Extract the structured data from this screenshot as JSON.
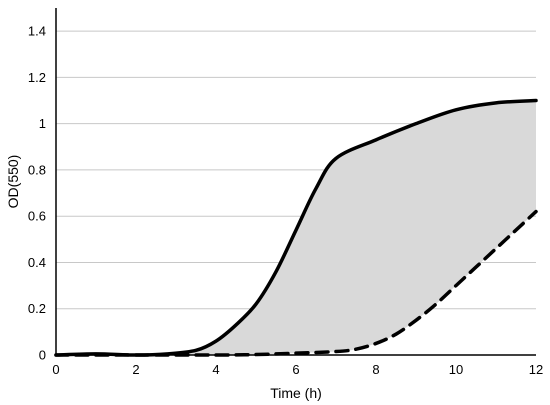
{
  "chart_data": {
    "type": "area",
    "xlabel": "Time (h)",
    "ylabel": "OD(550)",
    "xlim": [
      0,
      12
    ],
    "ylim": [
      0,
      1.5
    ],
    "x_ticks": [
      0,
      2,
      4,
      6,
      8,
      10,
      12
    ],
    "y_ticks": [
      0,
      0.2,
      0.4,
      0.6,
      0.8,
      1,
      1.2,
      1.4
    ],
    "grid": "horizontal",
    "fill_between_series": "#d9d9d9",
    "series": [
      {
        "style": "solid",
        "color": "#000000",
        "points": [
          [
            0,
            0
          ],
          [
            1,
            0.005
          ],
          [
            2,
            0
          ],
          [
            2.8,
            0.005
          ],
          [
            3.5,
            0.02
          ],
          [
            4,
            0.06
          ],
          [
            4.5,
            0.13
          ],
          [
            5,
            0.22
          ],
          [
            5.5,
            0.36
          ],
          [
            6,
            0.54
          ],
          [
            6.5,
            0.72
          ],
          [
            7,
            0.85
          ],
          [
            8,
            0.93
          ],
          [
            9,
            1.0
          ],
          [
            10,
            1.06
          ],
          [
            11,
            1.09
          ],
          [
            12,
            1.1
          ]
        ]
      },
      {
        "style": "dashed",
        "color": "#000000",
        "points": [
          [
            0,
            0
          ],
          [
            2,
            0
          ],
          [
            4,
            0
          ],
          [
            5,
            0.002
          ],
          [
            6,
            0.008
          ],
          [
            7,
            0.015
          ],
          [
            7.5,
            0.025
          ],
          [
            8,
            0.05
          ],
          [
            8.5,
            0.09
          ],
          [
            9,
            0.15
          ],
          [
            9.5,
            0.22
          ],
          [
            10,
            0.3
          ],
          [
            10.5,
            0.38
          ],
          [
            11,
            0.46
          ],
          [
            11.5,
            0.54
          ],
          [
            12,
            0.62
          ]
        ]
      }
    ]
  }
}
